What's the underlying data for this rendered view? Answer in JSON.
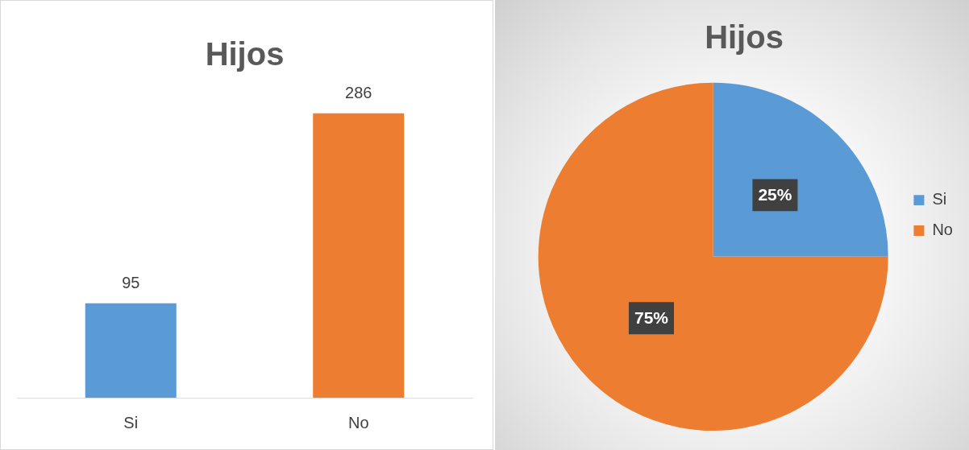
{
  "chart_data": [
    {
      "type": "bar",
      "title": "Hijos",
      "categories": [
        "Si",
        "No"
      ],
      "values": [
        95,
        286
      ],
      "colors": [
        "#5b9bd5",
        "#ed7d31"
      ],
      "data_labels": true
    },
    {
      "type": "pie",
      "title": "Hijos",
      "categories": [
        "Si",
        "No"
      ],
      "values": [
        25,
        75
      ],
      "colors": [
        "#5b9bd5",
        "#ed7d31"
      ],
      "value_labels": [
        "25%",
        "75%"
      ],
      "legend": "right"
    }
  ]
}
